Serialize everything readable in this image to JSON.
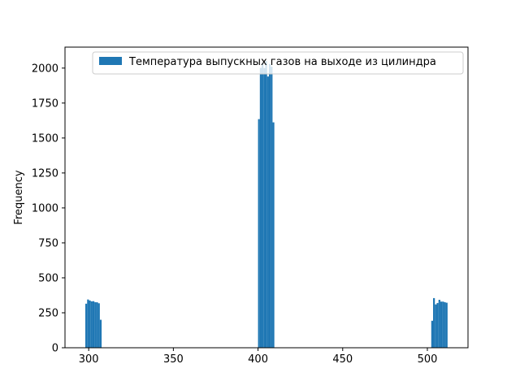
{
  "chart_data": {
    "type": "bar",
    "title": "",
    "xlabel": "",
    "ylabel": "Frequency",
    "xlim": [
      286,
      524
    ],
    "ylim": [
      0,
      2150
    ],
    "xticks": [
      300,
      350,
      400,
      450,
      500
    ],
    "yticks": [
      0,
      250,
      500,
      750,
      1000,
      1250,
      1500,
      1750,
      2000
    ],
    "bar_color": "#1f77b4",
    "grid": false,
    "legend": {
      "position": "upper right",
      "entries": [
        "Температура выпускных газов на выходе из цилиндра"
      ]
    },
    "series": [
      {
        "name": "Температура выпускных газов на выходе из цилиндра",
        "bins": [
          {
            "x0": 298.0,
            "x1": 299.07,
            "count": 315
          },
          {
            "x0": 299.07,
            "x1": 300.14,
            "count": 345
          },
          {
            "x0": 300.14,
            "x1": 301.21,
            "count": 338
          },
          {
            "x0": 301.21,
            "x1": 302.28,
            "count": 332
          },
          {
            "x0": 302.28,
            "x1": 303.35,
            "count": 333
          },
          {
            "x0": 303.35,
            "x1": 304.42,
            "count": 326
          },
          {
            "x0": 304.42,
            "x1": 305.49,
            "count": 325
          },
          {
            "x0": 305.49,
            "x1": 306.56,
            "count": 318
          },
          {
            "x0": 306.56,
            "x1": 307.63,
            "count": 200
          },
          {
            "x0": 400.0,
            "x1": 401.07,
            "count": 1635
          },
          {
            "x0": 401.07,
            "x1": 402.14,
            "count": 2002
          },
          {
            "x0": 402.14,
            "x1": 403.21,
            "count": 2035
          },
          {
            "x0": 403.21,
            "x1": 404.28,
            "count": 2000
          },
          {
            "x0": 404.28,
            "x1": 405.35,
            "count": 2050
          },
          {
            "x0": 405.35,
            "x1": 406.42,
            "count": 1940
          },
          {
            "x0": 406.42,
            "x1": 407.49,
            "count": 2030
          },
          {
            "x0": 407.49,
            "x1": 408.56,
            "count": 2010
          },
          {
            "x0": 408.56,
            "x1": 409.63,
            "count": 1612
          },
          {
            "x0": 502.3,
            "x1": 503.37,
            "count": 193
          },
          {
            "x0": 503.37,
            "x1": 504.44,
            "count": 355
          },
          {
            "x0": 504.44,
            "x1": 505.51,
            "count": 310
          },
          {
            "x0": 505.51,
            "x1": 506.58,
            "count": 320
          },
          {
            "x0": 506.58,
            "x1": 507.65,
            "count": 343
          },
          {
            "x0": 507.65,
            "x1": 508.72,
            "count": 330
          },
          {
            "x0": 508.72,
            "x1": 509.79,
            "count": 330
          },
          {
            "x0": 509.79,
            "x1": 510.86,
            "count": 326
          },
          {
            "x0": 510.86,
            "x1": 511.93,
            "count": 322
          }
        ]
      }
    ]
  }
}
